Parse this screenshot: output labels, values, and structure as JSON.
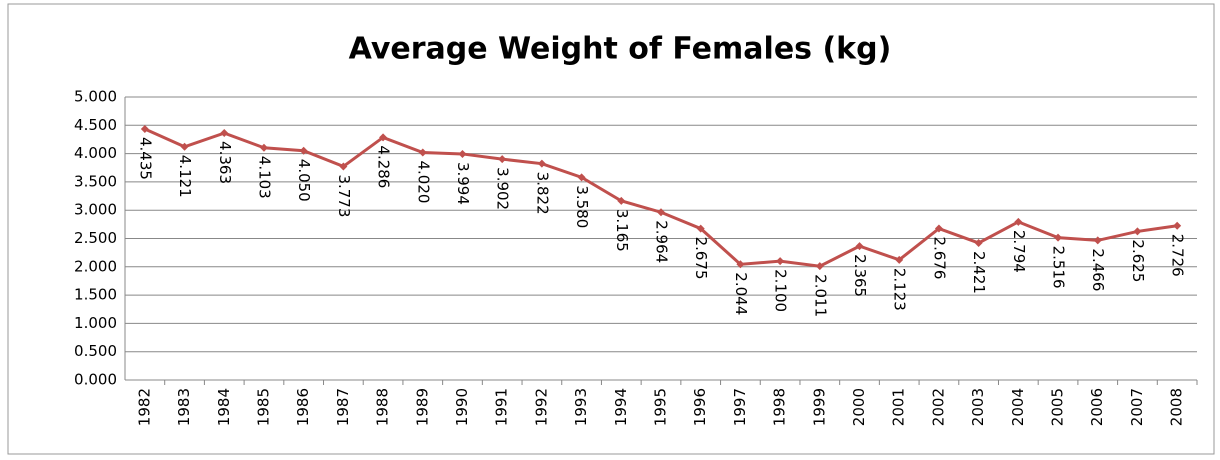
{
  "chart_data": {
    "type": "line",
    "title": "Average Weight of Females (kg)",
    "categories": [
      "1982",
      "1983",
      "1984",
      "1985",
      "1986",
      "1987",
      "1988",
      "1989",
      "1990",
      "1991",
      "1992",
      "1993",
      "1994",
      "1995",
      "1996",
      "1997",
      "1998",
      "1999",
      "2000",
      "2001",
      "2002",
      "2003",
      "2004",
      "2005",
      "2006",
      "2007",
      "2008"
    ],
    "series": [
      {
        "name": "Average Weight of Females (kg)",
        "color": "#c0504d",
        "values": [
          4.435,
          4.121,
          4.363,
          4.103,
          4.05,
          3.773,
          4.286,
          4.02,
          3.994,
          3.902,
          3.822,
          3.58,
          3.165,
          2.964,
          2.675,
          2.044,
          2.1,
          2.011,
          2.365,
          2.123,
          2.676,
          2.421,
          2.794,
          2.516,
          2.466,
          2.625,
          2.726
        ],
        "value_labels": [
          "4.435",
          "4.121",
          "4.363",
          "4.103",
          "4.050",
          "3.773",
          "4.286",
          "4.020",
          "3.994",
          "3.902",
          "3.822",
          "3.580",
          "3.165",
          "2.964",
          "2.675",
          "2.044",
          "2.100",
          "2.011",
          "2.365",
          "2.123",
          "2.676",
          "2.421",
          "2.794",
          "2.516",
          "2.466",
          "2.625",
          "2.726"
        ]
      }
    ],
    "ylim": [
      0,
      5
    ],
    "yticks": [
      {
        "value": 0,
        "label": "0.000"
      },
      {
        "value": 0.5,
        "label": "0.500"
      },
      {
        "value": 1,
        "label": "1.000"
      },
      {
        "value": 1.5,
        "label": "1.500"
      },
      {
        "value": 2,
        "label": "2.000"
      },
      {
        "value": 2.5,
        "label": "2.500"
      },
      {
        "value": 3,
        "label": "3.000"
      },
      {
        "value": 3.5,
        "label": "3.500"
      },
      {
        "value": 4,
        "label": "4.000"
      },
      {
        "value": 4.5,
        "label": "4.500"
      },
      {
        "value": 5,
        "label": "5.000"
      }
    ],
    "grid": true
  }
}
